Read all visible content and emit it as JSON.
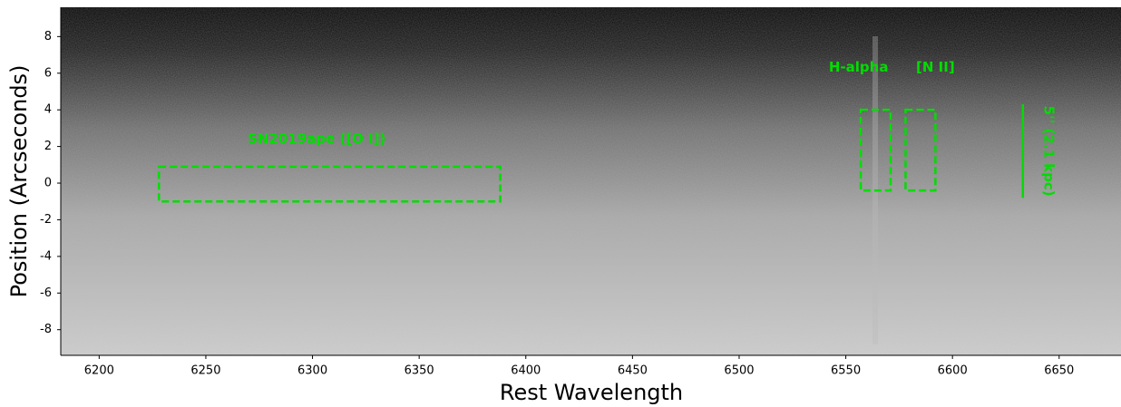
{
  "chart_data": {
    "type": "image",
    "xlabel": "Rest Wavelength",
    "ylabel": "Position (Arcseconds)",
    "xlim": [
      6182,
      6679
    ],
    "ylim": [
      -9.4,
      9.6
    ],
    "xticks": [
      6200,
      6250,
      6300,
      6350,
      6400,
      6450,
      6500,
      6550,
      6600,
      6650
    ],
    "yticks": [
      -8,
      -6,
      -4,
      -2,
      0,
      2,
      4,
      6,
      8
    ],
    "annotation_color": "#00dd00",
    "boxes": [
      {
        "x": [
          6228,
          6388
        ],
        "y": [
          -1,
          0.9
        ]
      },
      {
        "x": [
          6557,
          6571
        ],
        "y": [
          -0.4,
          4
        ]
      },
      {
        "x": [
          6578,
          6592
        ],
        "y": [
          -0.4,
          4
        ]
      }
    ],
    "labels": [
      {
        "text": "SN2019ape ([O I])",
        "x": 6302,
        "y": 2.4
      },
      {
        "text": "H-alpha",
        "x": 6556,
        "y": 6.3
      },
      {
        "text": "[N II]",
        "x": 6592,
        "y": 6.3
      }
    ],
    "scale_bar": {
      "x": 6633,
      "y": [
        -0.8,
        4.3
      ],
      "label": "5'' (2.1 kpc)",
      "label_x": 6645
    }
  }
}
